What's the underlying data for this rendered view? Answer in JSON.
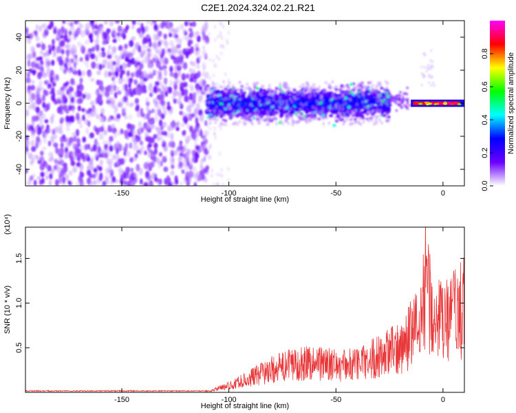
{
  "figure": {
    "title": "C2E1.2024.324.02.21.R21"
  },
  "chart_data": [
    {
      "type": "heatmap",
      "title": "C2E1.2024.324.02.21.R21",
      "xlabel": "Height of straight line (km)",
      "ylabel": "Frequency (Hz)",
      "xlim": [
        -195,
        10
      ],
      "ylim": [
        -50,
        50
      ],
      "xticks": [
        -150,
        -100,
        -50,
        0
      ],
      "yticks": [
        -40,
        -20,
        0,
        20,
        40
      ],
      "colorbar": {
        "label": "Normalized spectral amplitude",
        "range": [
          0,
          1
        ],
        "ticks": [
          "0.0",
          "0.2",
          "0.4",
          "0.6",
          "0.8"
        ],
        "colors": [
          "#ffffff",
          "#6a00ff",
          "#0000ff",
          "#00ffff",
          "#00ff00",
          "#ffff00",
          "#ff0000",
          "#ff00ff"
        ]
      },
      "regions": [
        {
          "x_range": [
            -195,
            -110
          ],
          "freq_range": [
            -50,
            50
          ],
          "level": "scattered 0.1-0.3"
        },
        {
          "x_range": [
            -110,
            -25
          ],
          "freq_center": 0,
          "freq_halfwidth": 10,
          "level": "0.2-0.5"
        },
        {
          "x_range": [
            -15,
            10
          ],
          "freq_center": 0,
          "freq_halfwidth": 2,
          "level": "0.6-1.0"
        }
      ]
    },
    {
      "type": "line",
      "xlabel": "Height of straight line (km)",
      "ylabel": "SNR (10 * v/v)",
      "yscale_label": "(x10⁴)",
      "xlim": [
        -195,
        10
      ],
      "ylim": [
        0,
        1.85
      ],
      "xticks": [
        -150,
        -100,
        -50,
        0
      ],
      "yticks": [
        0.5,
        1.0,
        1.5
      ],
      "color": "#e8383a",
      "series": [
        {
          "x": [
            -195,
            -150,
            -110,
            -105,
            -100,
            -90,
            -80,
            -70,
            -60,
            -50,
            -40,
            -30,
            -20,
            -10,
            -8,
            -5,
            0,
            5,
            10
          ],
          "y": [
            0.0,
            0.0,
            0.01,
            0.05,
            0.08,
            0.18,
            0.28,
            0.35,
            0.38,
            0.33,
            0.35,
            0.45,
            0.55,
            0.9,
            1.5,
            0.95,
            0.85,
            0.95,
            1.05
          ]
        }
      ]
    }
  ]
}
